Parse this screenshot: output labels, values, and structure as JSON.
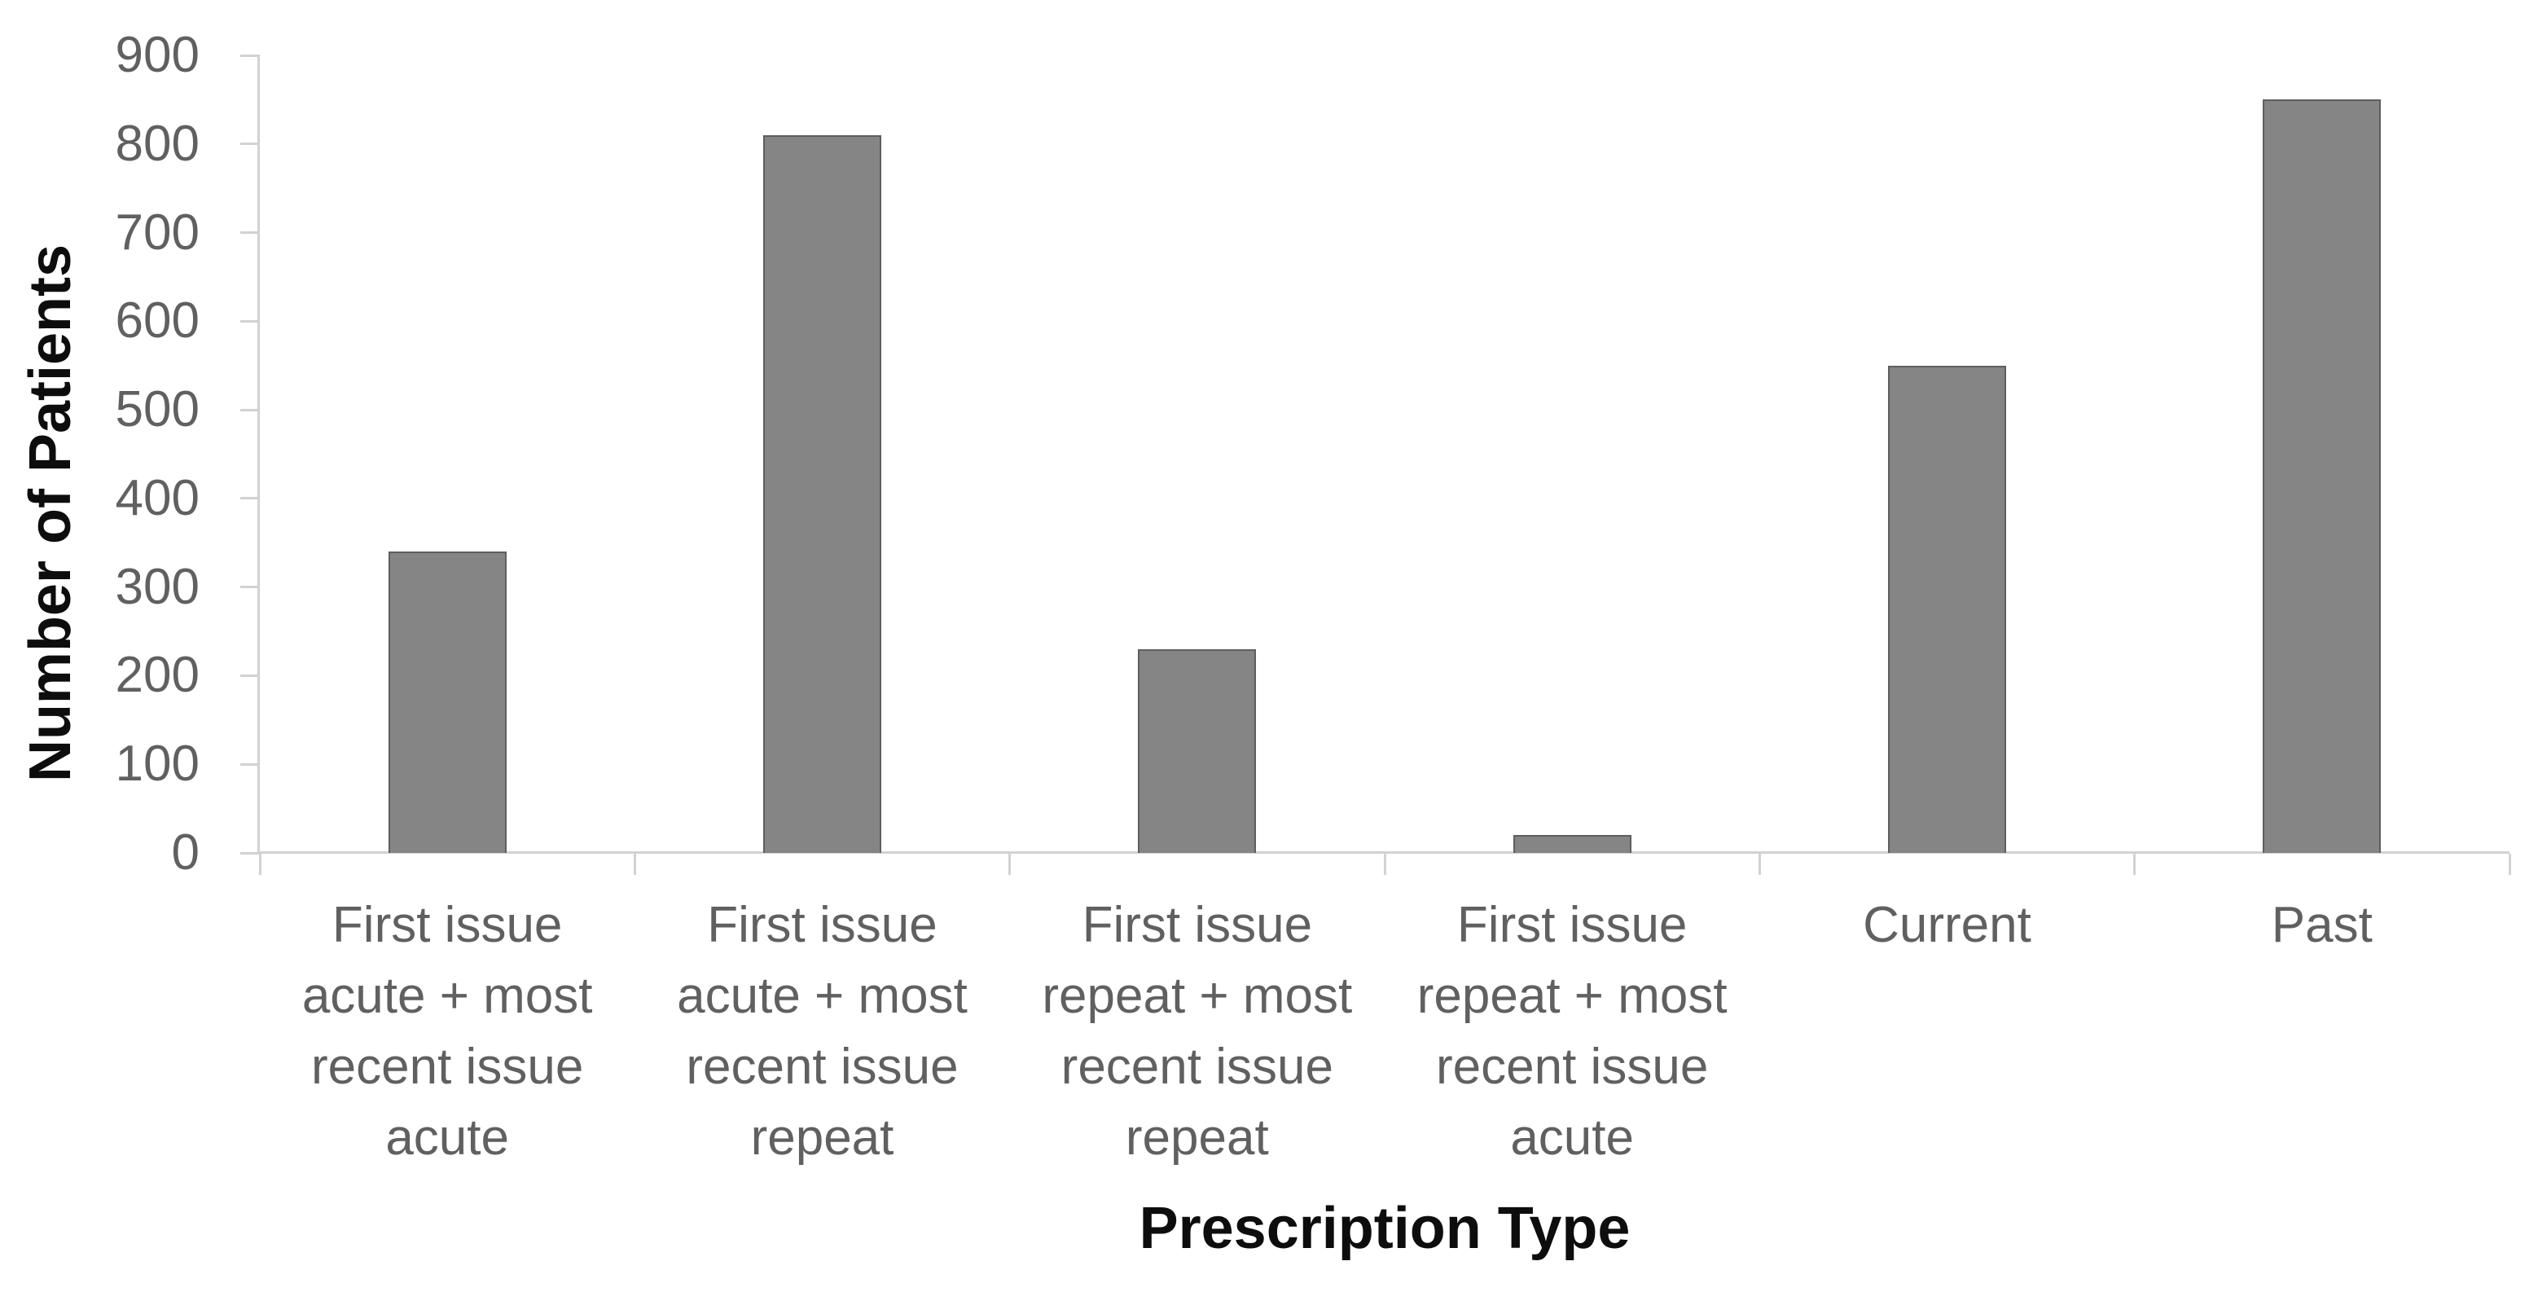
{
  "chart_data": {
    "type": "bar",
    "title": "",
    "xlabel": "Prescription Type",
    "ylabel": "Number of Patients",
    "categories": [
      "First issue\nacute + most\nrecent issue\nacute",
      "First issue\nacute + most\nrecent issue\nrepeat",
      "First issue\nrepeat + most\nrecent issue\nrepeat",
      "First issue\nrepeat + most\nrecent issue\nacute",
      "Current",
      "Past"
    ],
    "values": [
      340,
      810,
      230,
      20,
      550,
      850
    ],
    "ylim": [
      0,
      900
    ],
    "yticks": [
      0,
      100,
      200,
      300,
      400,
      500,
      600,
      700,
      800,
      900
    ],
    "grid": "off",
    "legend": "none",
    "bar_color": "#858585",
    "bar_border_color": "#5e5e5e",
    "axis_color": "#d2d2d2",
    "tick_label_color": "#606060",
    "axis_title_color": "#0d0d0d"
  }
}
